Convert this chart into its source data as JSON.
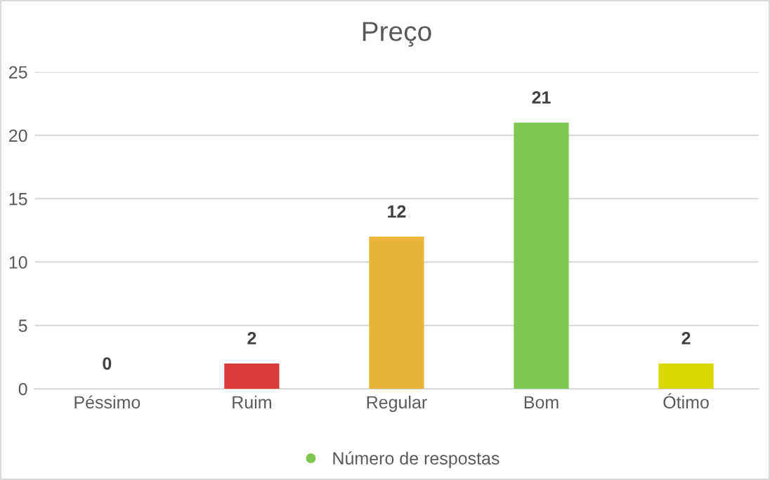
{
  "chart_data": {
    "type": "bar",
    "title": "Preço",
    "categories": [
      "Péssimo",
      "Ruim",
      "Regular",
      "Bom",
      "Ótimo"
    ],
    "series": [
      {
        "name": "Número de respostas",
        "color": "#7ec850",
        "values": [
          0,
          2,
          12,
          21,
          2
        ],
        "colors": [
          "#c03030",
          "#d93a3a",
          "#e8b53a",
          "#7ec850",
          "#d8d800"
        ]
      }
    ],
    "ylim": [
      0,
      25
    ],
    "yticks": [
      0,
      5,
      10,
      15,
      20,
      25
    ],
    "grid": "y",
    "legend": "bottom",
    "data_labels": true
  }
}
